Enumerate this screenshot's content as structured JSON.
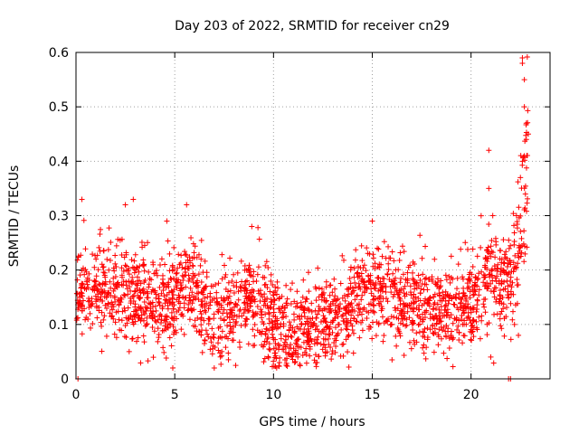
{
  "chart_data": {
    "type": "scatter",
    "title": "Day 203 of 2022, SRMTID for receiver cn29",
    "xlabel": "GPS time / hours",
    "ylabel": "SRMTID / TECUs",
    "xlim": [
      0,
      24
    ],
    "ylim": [
      0,
      0.6
    ],
    "x_ticks": [
      0,
      5,
      10,
      15,
      20
    ],
    "x_tick_labels": [
      "0",
      "5",
      "10",
      "15",
      "20"
    ],
    "y_ticks": [
      0,
      0.1,
      0.2,
      0.3,
      0.4,
      0.5,
      0.6
    ],
    "y_tick_labels": [
      "0",
      "0.1",
      "0.2",
      "0.3",
      "0.4",
      "0.5",
      "0.6"
    ],
    "grid": true,
    "marker": "+",
    "color": "#ff0000",
    "series": [
      {
        "name": "SRMTID",
        "trend": [
          [
            0.0,
            0.16
          ],
          [
            1.0,
            0.17
          ],
          [
            2.0,
            0.175
          ],
          [
            3.0,
            0.15
          ],
          [
            4.0,
            0.14
          ],
          [
            5.0,
            0.15
          ],
          [
            5.8,
            0.17
          ],
          [
            7.0,
            0.12
          ],
          [
            8.0,
            0.12
          ],
          [
            8.8,
            0.15
          ],
          [
            9.5,
            0.11
          ],
          [
            10.5,
            0.09
          ],
          [
            11.5,
            0.09
          ],
          [
            12.5,
            0.1
          ],
          [
            13.5,
            0.12
          ],
          [
            14.5,
            0.17
          ],
          [
            15.5,
            0.16
          ],
          [
            16.5,
            0.14
          ],
          [
            17.5,
            0.13
          ],
          [
            18.5,
            0.125
          ],
          [
            19.5,
            0.14
          ],
          [
            20.5,
            0.15
          ],
          [
            21.0,
            0.2
          ],
          [
            21.5,
            0.17
          ],
          [
            22.0,
            0.18
          ],
          [
            22.5,
            0.26
          ],
          [
            22.9,
            0.4
          ]
        ],
        "highlights": [
          [
            0.3,
            0.33
          ],
          [
            2.9,
            0.33
          ],
          [
            2.5,
            0.32
          ],
          [
            5.6,
            0.32
          ],
          [
            4.6,
            0.29
          ],
          [
            8.9,
            0.28
          ],
          [
            15.0,
            0.29
          ],
          [
            20.9,
            0.42
          ],
          [
            20.9,
            0.35
          ],
          [
            21.1,
            0.3
          ],
          [
            22.6,
            0.58
          ],
          [
            22.6,
            0.59
          ],
          [
            22.7,
            0.55
          ],
          [
            22.7,
            0.5
          ],
          [
            22.8,
            0.47
          ],
          [
            22.8,
            0.44
          ],
          [
            22.7,
            0.41
          ],
          [
            22.6,
            0.4
          ],
          [
            22.5,
            0.37
          ],
          [
            22.9,
            0.45
          ],
          [
            22.3,
            0.3
          ],
          [
            22.2,
            0.1
          ],
          [
            22.4,
            0.08
          ],
          [
            21.0,
            0.04
          ],
          [
            4.9,
            0.02
          ],
          [
            7.0,
            0.02
          ],
          [
            10.3,
            0.03
          ],
          [
            12.2,
            0.03
          ],
          [
            16.0,
            0.035
          ],
          [
            0.1,
            0.0
          ],
          [
            21.9,
            0.0
          ],
          [
            22.0,
            0.0
          ]
        ]
      }
    ]
  }
}
